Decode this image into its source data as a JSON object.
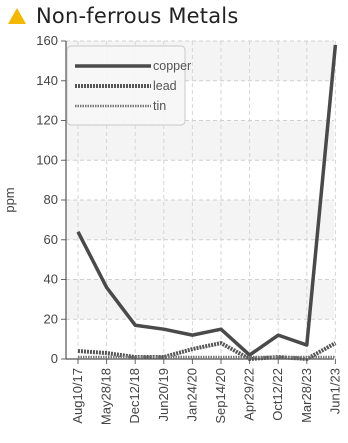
{
  "header": {
    "title": "Non-ferrous Metals",
    "icon": "warning-triangle-icon",
    "icon_color": "#f5b800"
  },
  "chart_data": {
    "type": "line",
    "title": "Non-ferrous Metals",
    "ylabel": "ppm",
    "xlabel": "",
    "ylim": [
      0,
      160
    ],
    "yticks": [
      0,
      20,
      40,
      60,
      80,
      100,
      120,
      140,
      160
    ],
    "categories": [
      "Aug10/17",
      "May28/18",
      "Dec12/18",
      "Jun20/19",
      "Jan24/20",
      "Sep14/20",
      "Apr29/22",
      "Oct12/22",
      "Mar28/23",
      "Jun1/23"
    ],
    "grid": true,
    "legend_position": "top-left",
    "series": [
      {
        "name": "copper",
        "values": [
          64,
          36,
          17,
          15,
          12,
          15,
          2,
          12,
          7,
          158
        ],
        "color": "#4a4a4a",
        "style": "solid"
      },
      {
        "name": "lead",
        "values": [
          4,
          3,
          1,
          1,
          5,
          8,
          0,
          1,
          0,
          8
        ],
        "color": "#555555",
        "style": "dense-dotted"
      },
      {
        "name": "tin",
        "values": [
          1,
          1,
          1,
          1,
          1,
          1,
          1,
          1,
          1,
          1
        ],
        "color": "#777777",
        "style": "fine-dotted"
      }
    ]
  }
}
